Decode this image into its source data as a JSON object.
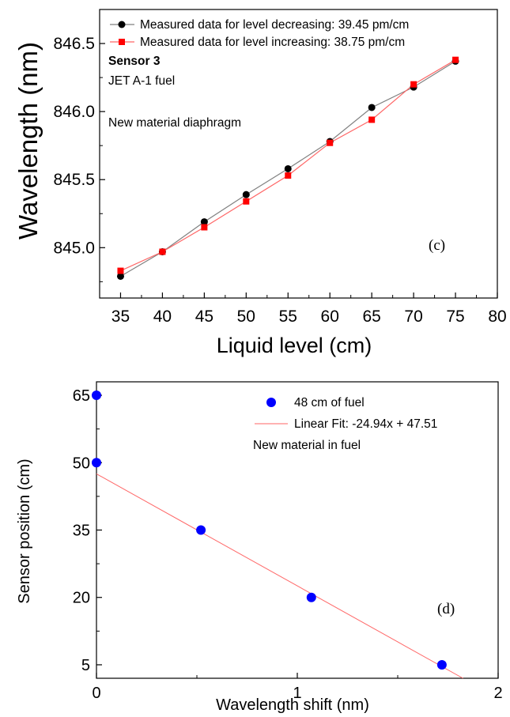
{
  "chart_data": [
    {
      "type": "line",
      "panel_label": "(c)",
      "xlabel": "Liquid level (cm)",
      "ylabel": "Wavelength (nm)",
      "xlim": [
        32.5,
        80
      ],
      "ylim": [
        844.63,
        846.75
      ],
      "xticks": [
        "35",
        "40",
        "45",
        "50",
        "55",
        "60",
        "65",
        "70",
        "75",
        "80"
      ],
      "yticks": [
        "845.0",
        "845.5",
        "846.0",
        "846.5"
      ],
      "annotations": [
        "Sensor 3",
        "JET A-1 fuel",
        "New material diaphragm"
      ],
      "legend_position": "top-left",
      "x": [
        35,
        40,
        45,
        50,
        55,
        60,
        65,
        70,
        75
      ],
      "series": [
        {
          "name": "Measured data for level decreasing: 39.45 pm/cm",
          "marker": "circle",
          "color": "#000000",
          "line_color": "#808080",
          "values": [
            844.79,
            844.97,
            845.19,
            845.39,
            845.58,
            845.78,
            846.03,
            846.18,
            846.37
          ]
        },
        {
          "name": "Measured data for level increasing: 38.75 pm/cm",
          "marker": "square",
          "color": "#ff0000",
          "line_color": "#ff6666",
          "values": [
            844.83,
            844.97,
            845.15,
            845.34,
            845.53,
            845.77,
            845.94,
            846.2,
            846.38
          ]
        }
      ]
    },
    {
      "type": "scatter",
      "panel_label": "(d)",
      "xlabel": "Wavelength shift (nm)",
      "ylabel": "Sensor position (cm)",
      "xlim": [
        0,
        2
      ],
      "ylim": [
        2,
        68
      ],
      "xticks": [
        "0",
        "1",
        "2"
      ],
      "yticks": [
        "5",
        "20",
        "35",
        "50",
        "65"
      ],
      "annotations": [
        "New material in fuel"
      ],
      "legend_position": "top-right",
      "series": [
        {
          "name": "48 cm of fuel",
          "marker": "circle",
          "color": "#0000ff",
          "x": [
            0.0,
            0.0,
            0.52,
            1.07,
            1.72
          ],
          "y": [
            65,
            50,
            35,
            20,
            5
          ]
        }
      ],
      "fit": {
        "name": "Linear Fit: -24.94x + 47.51",
        "slope": -24.94,
        "intercept": 47.51,
        "color": "#ff6666"
      }
    }
  ]
}
